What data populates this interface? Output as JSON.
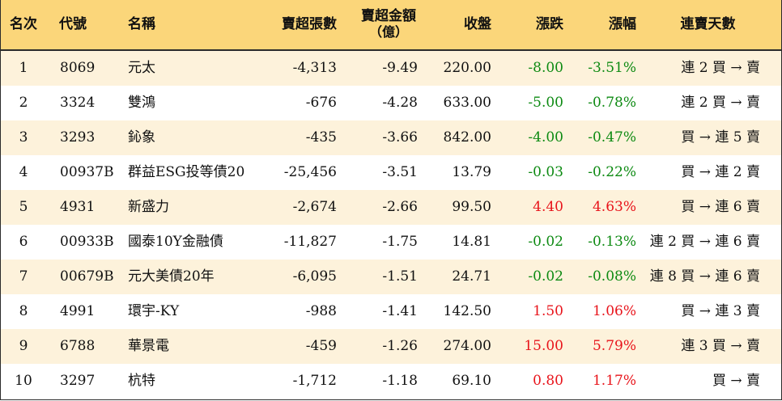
{
  "colors": {
    "header_bg": "#fbd67a",
    "odd_row_bg": "#fdf2db",
    "even_row_bg": "#ffffff",
    "rise": "#e8141b",
    "fall": "#0d8a12"
  },
  "headers": {
    "rank": "名次",
    "code": "代號",
    "name": "名稱",
    "sheets": "賣超張數",
    "amount_line1": "賣超金額",
    "amount_line2": "（億）",
    "close": "收盤",
    "change": "漲跌",
    "pct": "漲幅",
    "days": "連賣天數"
  },
  "rows": [
    {
      "rank": "1",
      "code": "8069",
      "name": "元太",
      "sheets": "-4,313",
      "amount": "-9.49",
      "close": "220.00",
      "change": "-8.00",
      "pct": "-3.51%",
      "days": "連 2 買 → 賣",
      "dir": "down"
    },
    {
      "rank": "2",
      "code": "3324",
      "name": "雙鴻",
      "sheets": "-676",
      "amount": "-4.28",
      "close": "633.00",
      "change": "-5.00",
      "pct": "-0.78%",
      "days": "連 2 買 → 賣",
      "dir": "down"
    },
    {
      "rank": "3",
      "code": "3293",
      "name": "鈊象",
      "sheets": "-435",
      "amount": "-3.66",
      "close": "842.00",
      "change": "-4.00",
      "pct": "-0.47%",
      "days": "買 → 連 5 賣",
      "dir": "down"
    },
    {
      "rank": "4",
      "code": "00937B",
      "name": "群益ESG投等債20",
      "sheets": "-25,456",
      "amount": "-3.51",
      "close": "13.79",
      "change": "-0.03",
      "pct": "-0.22%",
      "days": "買 → 連 2 賣",
      "dir": "down"
    },
    {
      "rank": "5",
      "code": "4931",
      "name": "新盛力",
      "sheets": "-2,674",
      "amount": "-2.66",
      "close": "99.50",
      "change": "4.40",
      "pct": "4.63%",
      "days": "買 → 連 6 賣",
      "dir": "up"
    },
    {
      "rank": "6",
      "code": "00933B",
      "name": "國泰10Y金融債",
      "sheets": "-11,827",
      "amount": "-1.75",
      "close": "14.81",
      "change": "-0.02",
      "pct": "-0.13%",
      "days": "連 2 買 → 連 6 賣",
      "dir": "down"
    },
    {
      "rank": "7",
      "code": "00679B",
      "name": "元大美債20年",
      "sheets": "-6,095",
      "amount": "-1.51",
      "close": "24.71",
      "change": "-0.02",
      "pct": "-0.08%",
      "days": "連 8 買 → 連 6 賣",
      "dir": "down"
    },
    {
      "rank": "8",
      "code": "4991",
      "name": "環宇-KY",
      "sheets": "-988",
      "amount": "-1.41",
      "close": "142.50",
      "change": "1.50",
      "pct": "1.06%",
      "days": "買 → 連 3 賣",
      "dir": "up"
    },
    {
      "rank": "9",
      "code": "6788",
      "name": "華景電",
      "sheets": "-459",
      "amount": "-1.26",
      "close": "274.00",
      "change": "15.00",
      "pct": "5.79%",
      "days": "連 3 買 → 賣",
      "dir": "up"
    },
    {
      "rank": "10",
      "code": "3297",
      "name": "杭特",
      "sheets": "-1,712",
      "amount": "-1.18",
      "close": "69.10",
      "change": "0.80",
      "pct": "1.17%",
      "days": "買 → 賣",
      "dir": "up"
    }
  ]
}
